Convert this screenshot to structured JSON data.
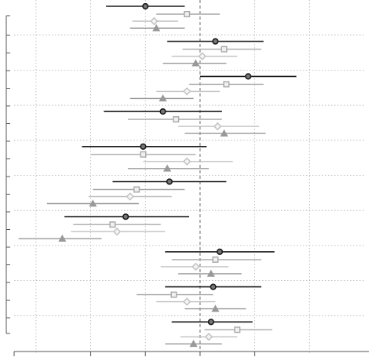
{
  "chart_data": {
    "type": "forest",
    "xlim": [
      -0.85,
      0.75
    ],
    "grid": true,
    "reference_line": 0,
    "colors": {
      "series_1": "#1a1a1a",
      "series_2": "#a8a8a8",
      "series_3": "#c0c0c0",
      "series_4": "#999999"
    },
    "series": [
      {
        "marker": "circle"
      },
      {
        "marker": "square"
      },
      {
        "marker": "diamond"
      },
      {
        "marker": "triangle"
      }
    ],
    "groups": [
      {
        "points": [
          {
            "est": -0.25,
            "lo": -0.43,
            "hi": -0.07
          },
          {
            "est": -0.06,
            "lo": -0.2,
            "hi": 0.09
          },
          {
            "est": -0.21,
            "lo": -0.31,
            "hi": -0.1
          },
          {
            "est": -0.2,
            "lo": -0.32,
            "hi": -0.07
          }
        ]
      },
      {
        "points": [
          {
            "est": 0.07,
            "lo": -0.15,
            "hi": 0.29
          },
          {
            "est": 0.11,
            "lo": -0.08,
            "hi": 0.28
          },
          {
            "est": 0.01,
            "lo": -0.13,
            "hi": 0.17
          },
          {
            "est": -0.02,
            "lo": -0.17,
            "hi": 0.12
          }
        ]
      },
      {
        "points": [
          {
            "est": 0.22,
            "lo": 0.0,
            "hi": 0.44
          },
          {
            "est": 0.12,
            "lo": -0.05,
            "hi": 0.29
          },
          {
            "est": -0.06,
            "lo": -0.2,
            "hi": 0.09
          },
          {
            "est": -0.17,
            "lo": -0.32,
            "hi": -0.03
          }
        ]
      },
      {
        "points": [
          {
            "est": -0.17,
            "lo": -0.44,
            "hi": 0.1
          },
          {
            "est": -0.11,
            "lo": -0.33,
            "hi": 0.1
          },
          {
            "est": 0.08,
            "lo": -0.1,
            "hi": 0.27
          },
          {
            "est": 0.11,
            "lo": -0.07,
            "hi": 0.3
          }
        ]
      },
      {
        "points": [
          {
            "est": -0.26,
            "lo": -0.54,
            "hi": 0.03
          },
          {
            "est": -0.26,
            "lo": -0.5,
            "hi": -0.02
          },
          {
            "est": -0.06,
            "lo": -0.26,
            "hi": 0.15
          },
          {
            "est": -0.15,
            "lo": -0.33,
            "hi": 0.04
          }
        ]
      },
      {
        "points": [
          {
            "est": -0.14,
            "lo": -0.4,
            "hi": 0.12
          },
          {
            "est": -0.29,
            "lo": -0.49,
            "hi": -0.07
          },
          {
            "est": -0.32,
            "lo": -0.51,
            "hi": -0.13
          },
          {
            "est": -0.49,
            "lo": -0.7,
            "hi": -0.28
          }
        ]
      },
      {
        "points": [
          {
            "est": -0.34,
            "lo": -0.62,
            "hi": -0.05
          },
          {
            "est": -0.4,
            "lo": -0.58,
            "hi": -0.18
          },
          {
            "est": -0.38,
            "lo": -0.59,
            "hi": -0.16
          },
          {
            "est": -0.63,
            "lo": -0.83,
            "hi": -0.45
          }
        ]
      },
      {
        "points": [
          {
            "est": 0.09,
            "lo": -0.16,
            "hi": 0.34
          },
          {
            "est": 0.07,
            "lo": -0.13,
            "hi": 0.28
          },
          {
            "est": -0.02,
            "lo": -0.18,
            "hi": 0.13
          },
          {
            "est": 0.05,
            "lo": -0.1,
            "hi": 0.19
          }
        ]
      },
      {
        "points": [
          {
            "est": 0.06,
            "lo": -0.16,
            "hi": 0.28
          },
          {
            "est": -0.12,
            "lo": -0.29,
            "hi": 0.06
          },
          {
            "est": -0.06,
            "lo": -0.2,
            "hi": 0.07
          },
          {
            "est": 0.07,
            "lo": -0.07,
            "hi": 0.21
          }
        ]
      },
      {
        "points": [
          {
            "est": 0.05,
            "lo": -0.13,
            "hi": 0.24
          },
          {
            "est": 0.17,
            "lo": 0.02,
            "hi": 0.33
          },
          {
            "est": 0.04,
            "lo": -0.09,
            "hi": 0.17
          },
          {
            "est": -0.03,
            "lo": -0.16,
            "hi": 0.1
          }
        ]
      }
    ]
  }
}
